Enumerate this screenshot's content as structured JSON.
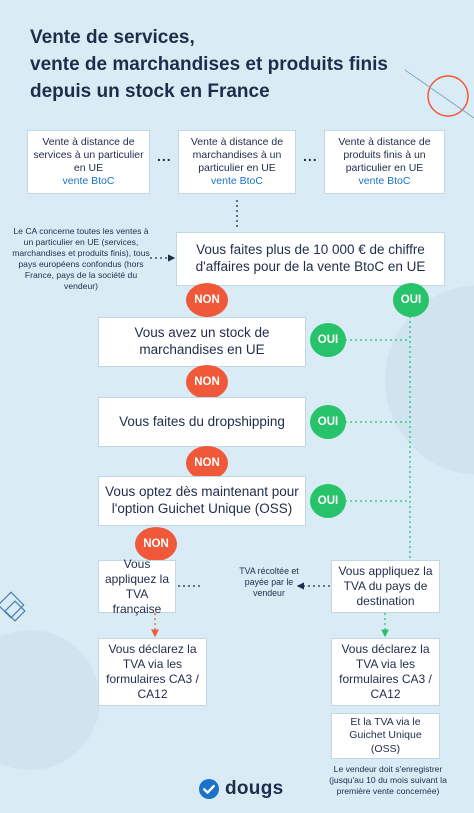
{
  "title": {
    "line1": "Vente de services,",
    "line2": "vente de marchandises et produits finis",
    "line3": "depuis un stock en France"
  },
  "top_boxes": [
    {
      "text": "Vente à distance de services à un particulier en UE",
      "tag": "vente BtoC"
    },
    {
      "text": "Vente à distance de marchandises à un particulier en UE",
      "tag": "vente BtoC"
    },
    {
      "text": "Vente à distance de produits finis à un particulier en UE",
      "tag": "vente BtoC"
    }
  ],
  "ellipsis": "...",
  "side_note": "Le CA concerne toutes les ventes à un particulier en UE (services, marchandises et produits finis), tous pays européens confondus (hors France, pays de la société du vendeur)",
  "questions": {
    "q1": "Vous faites plus de 10 000 € de chiffre d'affaires pour de la vente BtoC en UE",
    "q2": "Vous avez un stock de marchandises en UE",
    "q3": "Vous faites du dropshipping",
    "q4": "Vous optez dès maintenant pour l'option Guichet Unique (OSS)"
  },
  "labels": {
    "non": "NON",
    "oui": "OUI"
  },
  "results": {
    "fr_vat": "Vous appliquez la TVA française",
    "dest_vat": "Vous appliquez la TVA du pays de destination",
    "tva_note": "TVA récoltée et payée par le vendeur",
    "declare_left": "Vous déclarez la TVA via les formulaires CA3 / CA12",
    "declare_right": "Vous déclarez la TVA via les formulaires CA3 / CA12",
    "oss": "Et la TVA via le Guichet Unique (OSS)",
    "register_note": "Le vendeur doit s'enregistrer (jusqu'au 10 du mois suivant la première vente concernée)"
  },
  "logo": {
    "text": "dougs",
    "icon": "check-circle-icon"
  },
  "colors": {
    "background": "#d9ecf5",
    "navy": "#1e2d4a",
    "blue_text": "#1a73c9",
    "non": "#f0583a",
    "oui": "#27c36a"
  }
}
